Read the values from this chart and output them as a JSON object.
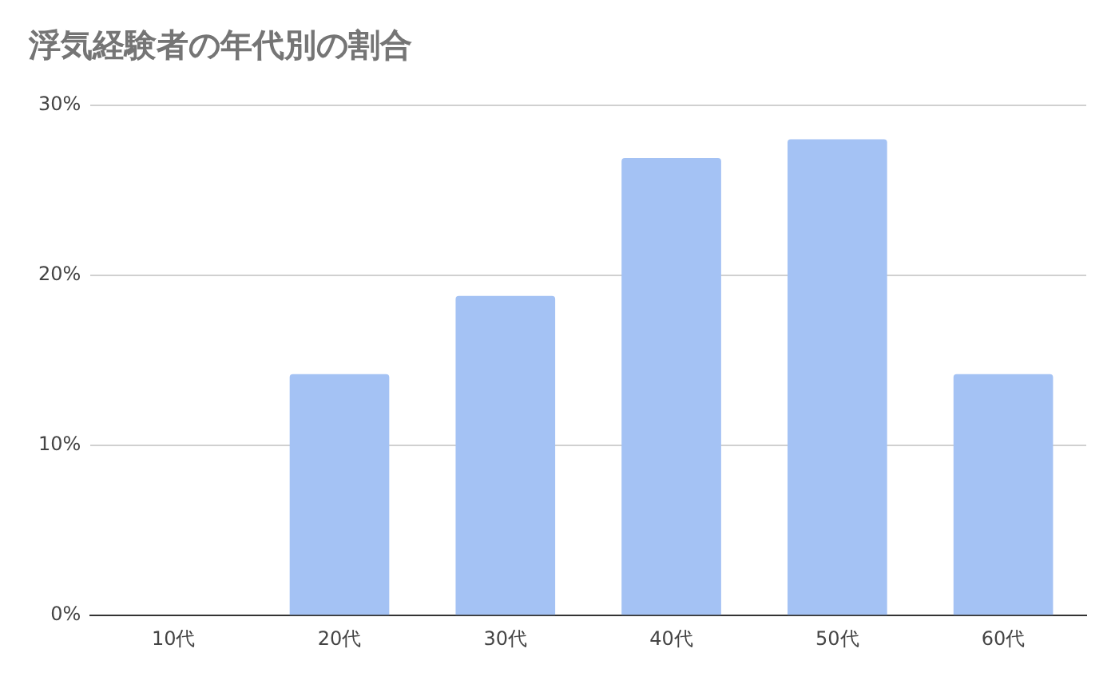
{
  "chart_data": {
    "type": "bar",
    "title": "浮気経験者の年代別の割合",
    "categories": [
      "10代",
      "20代",
      "30代",
      "40代",
      "50代",
      "60代"
    ],
    "values": [
      0,
      14.2,
      18.8,
      26.9,
      28.0,
      14.2
    ],
    "color": "#a4c2f4",
    "ylim": [
      0,
      30
    ],
    "yticks": [
      {
        "value": 0,
        "label": "0%"
      },
      {
        "value": 10,
        "label": "10%"
      },
      {
        "value": 20,
        "label": "20%"
      },
      {
        "value": 30,
        "label": "30%"
      }
    ],
    "grid": "y",
    "legend": false
  }
}
